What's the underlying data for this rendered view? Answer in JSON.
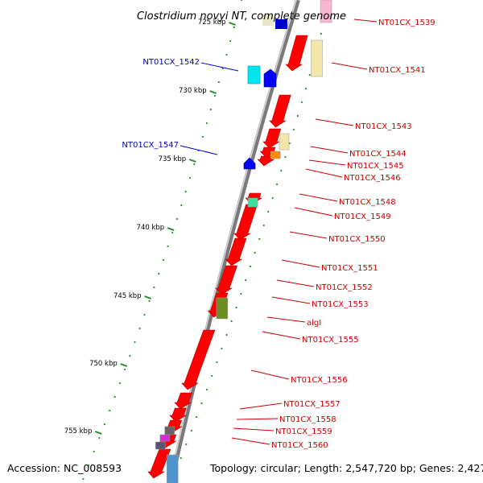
{
  "title": "Clostridium novyi NT, complete genome",
  "accession": "Accession: NC_008593",
  "topology": "Topology: circular; Length: 2,547,720 bp; Genes: 2,427",
  "colors": {
    "forward": "#ff0000",
    "reverse_label": "#0000c8",
    "forward_label": "#cc0000",
    "backbone": "#808080",
    "tick": "#228b22"
  },
  "ticks": [
    {
      "label": "725 kbp"
    },
    {
      "label": "730 kbp"
    },
    {
      "label": "735 kbp"
    },
    {
      "label": "740 kbp"
    },
    {
      "label": "745 kbp"
    },
    {
      "label": "750 kbp"
    },
    {
      "label": "755 kbp"
    }
  ],
  "reverse_labels": [
    {
      "label": "NT01CX_1542"
    },
    {
      "label": "NT01CX_1547"
    }
  ],
  "forward_labels": [
    {
      "label": "NT01CX_1539"
    },
    {
      "label": "NT01CX_1541"
    },
    {
      "label": "NT01CX_1543"
    },
    {
      "label": "NT01CX_1544"
    },
    {
      "label": "NT01CX_1545"
    },
    {
      "label": "NT01CX_1546"
    },
    {
      "label": "NT01CX_1548"
    },
    {
      "label": "NT01CX_1549"
    },
    {
      "label": "NT01CX_1550"
    },
    {
      "label": "NT01CX_1551"
    },
    {
      "label": "NT01CX_1552"
    },
    {
      "label": "NT01CX_1553"
    },
    {
      "label": "algI"
    },
    {
      "label": "NT01CX_1555"
    },
    {
      "label": "NT01CX_1556"
    },
    {
      "label": "NT01CX_1557"
    },
    {
      "label": "NT01CX_1558"
    },
    {
      "label": "NT01CX_1559"
    },
    {
      "label": "NT01CX_1560"
    }
  ]
}
